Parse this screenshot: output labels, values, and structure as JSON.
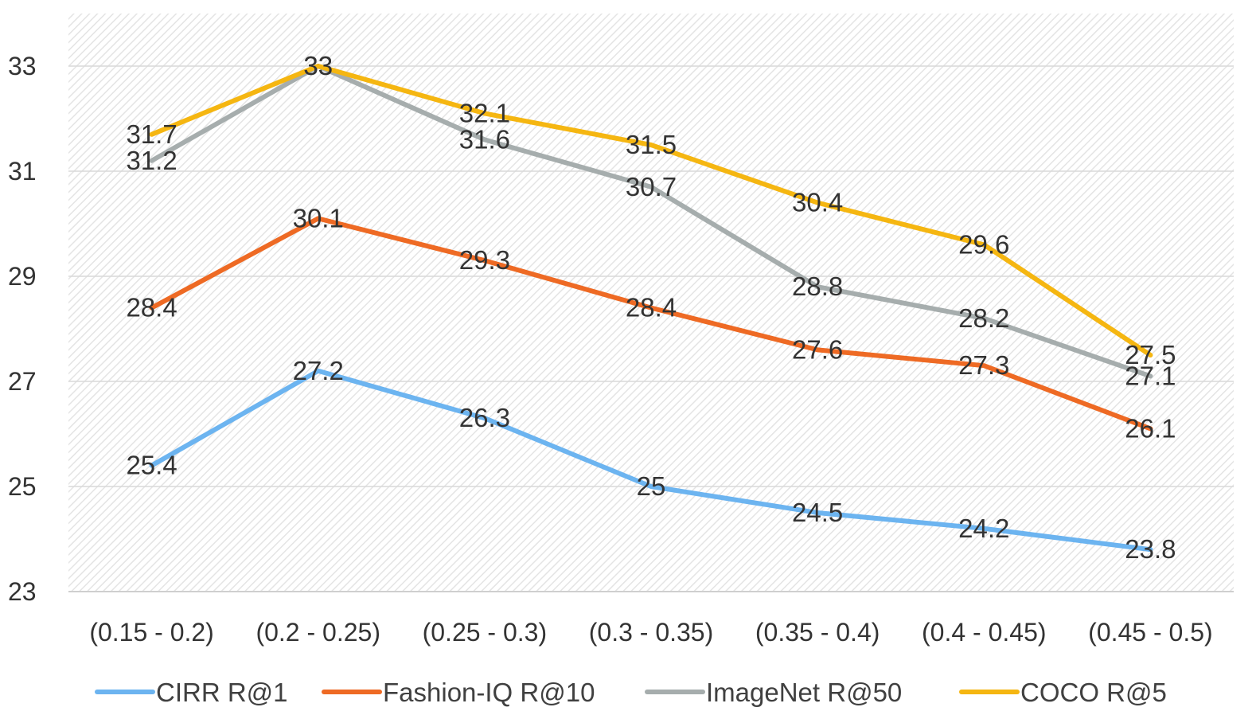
{
  "chart_data": {
    "type": "line",
    "title": "",
    "xlabel": "",
    "ylabel": "",
    "categories": [
      "(0.15 - 0.2)",
      "(0.2 - 0.25)",
      "(0.25 - 0.3)",
      "(0.3 - 0.35)",
      "(0.35 - 0.4)",
      "(0.4 - 0.45)",
      "(0.45 - 0.5)"
    ],
    "ylim": [
      23,
      34
    ],
    "yticks": [
      23,
      25,
      27,
      29,
      31,
      33
    ],
    "grid": true,
    "legend_position": "bottom",
    "series": [
      {
        "name": "CIRR R@1",
        "color": "#6cb4f0",
        "values": [
          25.4,
          27.2,
          26.3,
          25,
          24.5,
          24.2,
          23.8
        ]
      },
      {
        "name": "Fashion-IQ R@10",
        "color": "#ee6a24",
        "values": [
          28.4,
          30.1,
          29.3,
          28.4,
          27.6,
          27.3,
          26.1
        ]
      },
      {
        "name": "ImageNet R@50",
        "color": "#a6adad",
        "values": [
          31.2,
          33,
          31.6,
          30.7,
          28.8,
          28.2,
          27.1
        ]
      },
      {
        "name": "COCO R@5",
        "color": "#f5b611",
        "values": [
          31.7,
          33,
          32.1,
          31.5,
          30.4,
          29.6,
          27.5
        ]
      }
    ]
  }
}
